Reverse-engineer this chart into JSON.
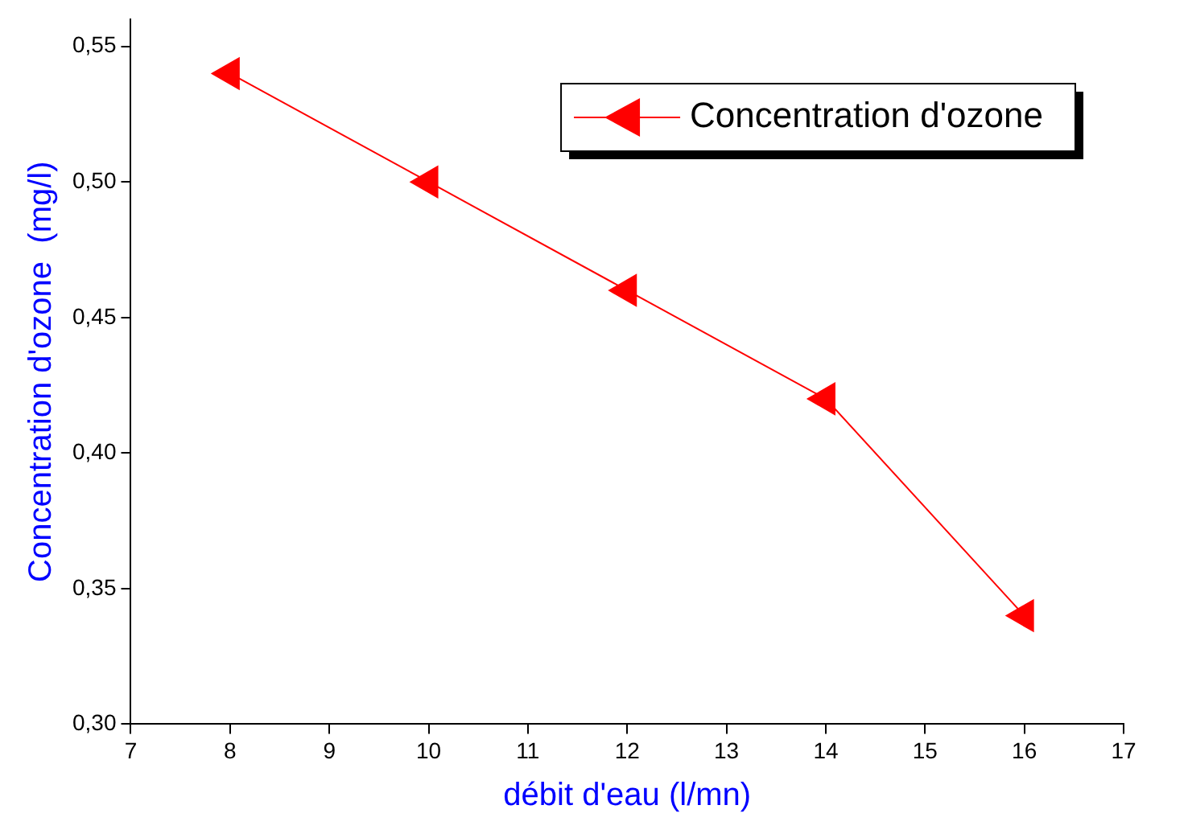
{
  "chart_data": {
    "type": "line",
    "xlabel": "débit d'eau (l/mn)",
    "ylabel": "Concentration d'ozone  (mg/l)",
    "x": [
      8,
      10,
      12,
      14,
      16
    ],
    "series": [
      {
        "name": "Concentration d'ozone",
        "color": "#ff0000",
        "values": [
          0.54,
          0.5,
          0.46,
          0.42,
          0.34
        ]
      }
    ],
    "xlim": [
      7,
      17
    ],
    "xticks": [
      7,
      8,
      9,
      10,
      11,
      12,
      13,
      14,
      15,
      16,
      17
    ],
    "ylim": [
      0.3,
      0.56
    ],
    "yticks": [
      {
        "value": 0.3,
        "label": "0,30"
      },
      {
        "value": 0.35,
        "label": "0,35"
      },
      {
        "value": 0.4,
        "label": "0,40"
      },
      {
        "value": 0.45,
        "label": "0,45"
      },
      {
        "value": 0.5,
        "label": "0,50"
      },
      {
        "value": 0.55,
        "label": "0,55"
      }
    ],
    "grid": false,
    "legend": "top right",
    "marker": "triangle",
    "line_style": "solid"
  }
}
